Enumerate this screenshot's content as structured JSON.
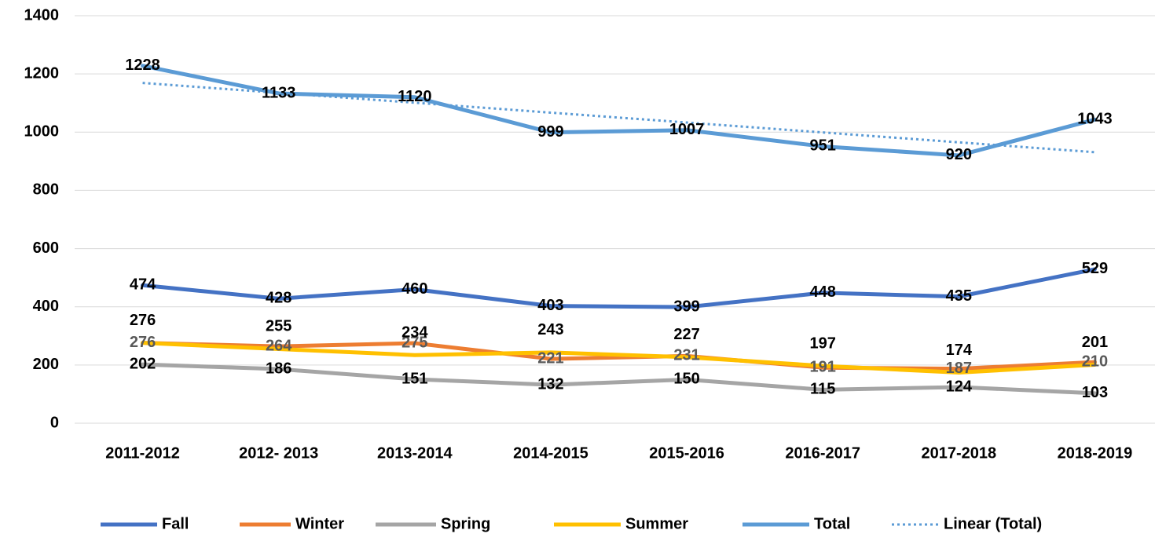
{
  "chart_data": {
    "type": "line",
    "categories": [
      "2011-2012",
      "2012- 2013",
      "2013-2014",
      "2014-2015",
      "2015-2016",
      "2016-2017",
      "2017-2018",
      "2018-2019"
    ],
    "series": [
      {
        "name": "Fall",
        "color": "#4472c4",
        "values": [
          474,
          428,
          460,
          403,
          399,
          448,
          435,
          529
        ]
      },
      {
        "name": "Winter",
        "color": "#ed7d31",
        "label_color": "#595959",
        "values": [
          276,
          264,
          275,
          221,
          231,
          191,
          187,
          210
        ]
      },
      {
        "name": "Spring",
        "color": "#a5a5a5",
        "values": [
          202,
          186,
          151,
          132,
          150,
          115,
          124,
          103
        ]
      },
      {
        "name": "Summer",
        "color": "#ffc000",
        "values": [
          276,
          255,
          234,
          243,
          227,
          197,
          174,
          201
        ]
      },
      {
        "name": "Total",
        "color": "#5b9bd5",
        "values": [
          1228,
          1133,
          1120,
          999,
          1007,
          951,
          920,
          1043
        ]
      },
      {
        "name": "Linear (Total)",
        "color": "#5b9bd5",
        "dotted": true,
        "data_labels": false,
        "values": [
          1169,
          1135,
          1101,
          1067,
          1033,
          999,
          965,
          931
        ]
      }
    ],
    "ylim": [
      0,
      1400
    ],
    "yticks": [
      0,
      200,
      400,
      600,
      800,
      1000,
      1200,
      1400
    ],
    "grid": true,
    "legend": "bottom"
  }
}
